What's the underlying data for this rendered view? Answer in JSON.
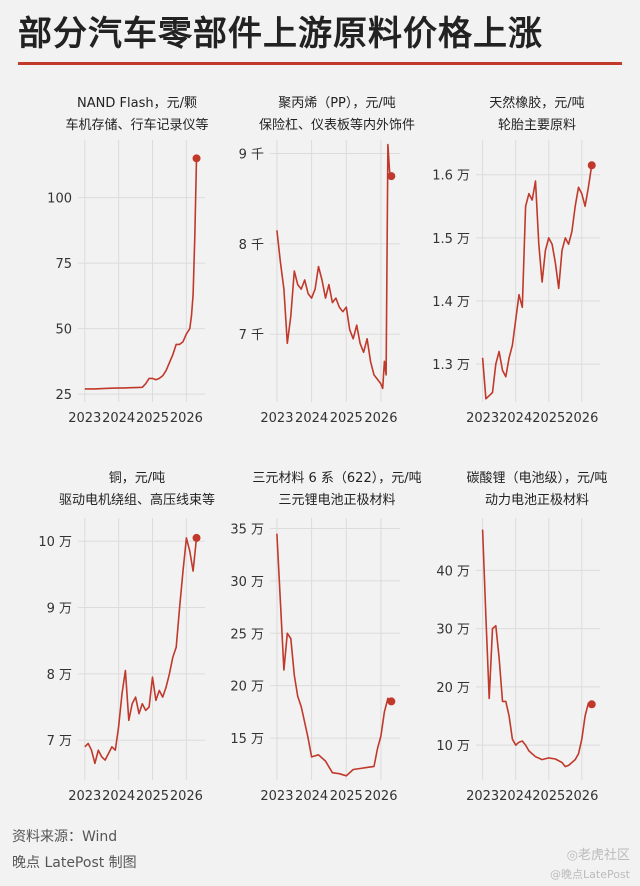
{
  "title": "部分汽车零部件上游原料价格上涨",
  "footer": {
    "source": "资料来源：Wind",
    "credit": "晚点 LatePost 制图",
    "watermark": "◎老虎社区",
    "watermark_sub": "@晚点LatePost"
  },
  "colors": {
    "accent": "#c0392b",
    "grid": "#dcdcdc",
    "background": "#f2f2f2"
  },
  "chart_data": [
    {
      "type": "line",
      "title": "NAND Flash，元/颗",
      "subtitle": "车机存储、行车记录仪等",
      "x_ticks": [
        "2023",
        "2024",
        "2025",
        "2026"
      ],
      "y_ticks": [
        {
          "v": 25,
          "label": "25"
        },
        {
          "v": 50,
          "label": "50"
        },
        {
          "v": 75,
          "label": "75"
        },
        {
          "v": 100,
          "label": "100"
        }
      ],
      "xlim": [
        2022.8,
        2026.55
      ],
      "ylim": [
        22,
        122
      ],
      "x": [
        2023.0,
        2023.3,
        2023.6,
        2023.9,
        2024.2,
        2024.5,
        2024.7,
        2024.8,
        2024.9,
        2025.0,
        2025.1,
        2025.2,
        2025.3,
        2025.4,
        2025.5,
        2025.6,
        2025.7,
        2025.8,
        2025.9,
        2026.0,
        2026.05,
        2026.1,
        2026.15,
        2026.2,
        2026.25,
        2026.3
      ],
      "y": [
        27,
        27,
        27.2,
        27.3,
        27.4,
        27.5,
        27.6,
        29,
        31,
        31,
        30.5,
        31,
        32,
        34,
        37,
        40,
        44,
        44,
        45,
        48,
        49,
        50,
        55,
        63,
        85,
        115
      ]
    },
    {
      "type": "line",
      "title": "聚丙烯（PP），元/吨",
      "subtitle": "保险杠、仪表板等内外饰件",
      "x_ticks": [
        "2023",
        "2024",
        "2025",
        "2026"
      ],
      "y_ticks": [
        {
          "v": 7000,
          "label": "7 千"
        },
        {
          "v": 8000,
          "label": "8 千"
        },
        {
          "v": 9000,
          "label": "9 千"
        }
      ],
      "xlim": [
        2022.8,
        2026.55
      ],
      "ylim": [
        6250,
        9150
      ],
      "x": [
        2023.0,
        2023.1,
        2023.2,
        2023.3,
        2023.4,
        2023.5,
        2023.6,
        2023.7,
        2023.8,
        2023.9,
        2024.0,
        2024.1,
        2024.2,
        2024.3,
        2024.4,
        2024.5,
        2024.6,
        2024.7,
        2024.8,
        2024.9,
        2025.0,
        2025.1,
        2025.2,
        2025.3,
        2025.4,
        2025.5,
        2025.6,
        2025.7,
        2025.8,
        2025.9,
        2026.0,
        2026.05,
        2026.1,
        2026.15,
        2026.2,
        2026.25,
        2026.3
      ],
      "y": [
        8150,
        7800,
        7500,
        6900,
        7200,
        7700,
        7550,
        7500,
        7600,
        7450,
        7400,
        7500,
        7750,
        7600,
        7400,
        7550,
        7350,
        7400,
        7300,
        7250,
        7300,
        7050,
        6950,
        7100,
        6900,
        6800,
        6950,
        6700,
        6550,
        6500,
        6450,
        6400,
        6700,
        6550,
        9100,
        8800,
        8750
      ]
    },
    {
      "type": "line",
      "title": "天然橡胶，元/吨",
      "subtitle": "轮胎主要原料",
      "x_ticks": [
        "2023",
        "2024",
        "2025",
        "2026"
      ],
      "y_ticks": [
        {
          "v": 13000,
          "label": "1.3 万"
        },
        {
          "v": 14000,
          "label": "1.4 万"
        },
        {
          "v": 15000,
          "label": "1.5 万"
        },
        {
          "v": 16000,
          "label": "1.6 万"
        }
      ],
      "xlim": [
        2022.8,
        2026.55
      ],
      "ylim": [
        12400,
        16550
      ],
      "x": [
        2023.0,
        2023.1,
        2023.2,
        2023.3,
        2023.4,
        2023.5,
        2023.6,
        2023.7,
        2023.8,
        2023.9,
        2024.0,
        2024.1,
        2024.2,
        2024.3,
        2024.4,
        2024.5,
        2024.6,
        2024.7,
        2024.8,
        2024.9,
        2025.0,
        2025.1,
        2025.2,
        2025.3,
        2025.4,
        2025.5,
        2025.6,
        2025.7,
        2025.8,
        2025.9,
        2026.0,
        2026.1,
        2026.2,
        2026.3
      ],
      "y": [
        13100,
        12450,
        12500,
        12550,
        13000,
        13200,
        12900,
        12800,
        13100,
        13300,
        13700,
        14100,
        13900,
        15500,
        15700,
        15600,
        15900,
        14900,
        14300,
        14800,
        15000,
        14900,
        14600,
        14200,
        14800,
        15000,
        14900,
        15100,
        15500,
        15800,
        15700,
        15500,
        15800,
        16150
      ]
    },
    {
      "type": "line",
      "title": "铜，元/吨",
      "subtitle": "驱动电机绕组、高压线束等",
      "x_ticks": [
        "2023",
        "2024",
        "2025",
        "2026"
      ],
      "y_ticks": [
        {
          "v": 70000,
          "label": "7 万"
        },
        {
          "v": 80000,
          "label": "8 万"
        },
        {
          "v": 90000,
          "label": "9 万"
        },
        {
          "v": 100000,
          "label": "10 万"
        }
      ],
      "xlim": [
        2022.8,
        2026.55
      ],
      "ylim": [
        64000,
        103500
      ],
      "x": [
        2023.0,
        2023.1,
        2023.2,
        2023.3,
        2023.4,
        2023.5,
        2023.6,
        2023.7,
        2023.8,
        2023.9,
        2024.0,
        2024.1,
        2024.2,
        2024.3,
        2024.4,
        2024.5,
        2024.6,
        2024.7,
        2024.8,
        2024.9,
        2025.0,
        2025.1,
        2025.2,
        2025.3,
        2025.4,
        2025.5,
        2025.6,
        2025.7,
        2025.8,
        2025.9,
        2026.0,
        2026.1,
        2026.2,
        2026.3
      ],
      "y": [
        69000,
        69500,
        68500,
        66500,
        68500,
        67500,
        67000,
        68000,
        69000,
        68500,
        72000,
        77000,
        80500,
        73000,
        75500,
        76500,
        74000,
        75500,
        74500,
        75000,
        79500,
        76000,
        77500,
        76500,
        78000,
        80000,
        82500,
        84000,
        90000,
        95500,
        100500,
        98500,
        95500,
        100500
      ]
    },
    {
      "type": "line",
      "title": "三元材料 6 系（622），元/吨",
      "subtitle": "三元锂电池正极材料",
      "x_ticks": [
        "2023",
        "2024",
        "2025",
        "2026"
      ],
      "y_ticks": [
        {
          "v": 150000,
          "label": "15 万"
        },
        {
          "v": 200000,
          "label": "20 万"
        },
        {
          "v": 250000,
          "label": "25 万"
        },
        {
          "v": 300000,
          "label": "30 万"
        },
        {
          "v": 350000,
          "label": "35 万"
        }
      ],
      "xlim": [
        2022.8,
        2026.55
      ],
      "ylim": [
        110000,
        360000
      ],
      "x": [
        2023.0,
        2023.1,
        2023.2,
        2023.3,
        2023.4,
        2023.5,
        2023.6,
        2023.7,
        2023.8,
        2023.9,
        2024.0,
        2024.2,
        2024.4,
        2024.6,
        2024.8,
        2025.0,
        2025.2,
        2025.4,
        2025.6,
        2025.8,
        2025.9,
        2026.0,
        2026.1,
        2026.2,
        2026.3
      ],
      "y": [
        345000,
        280000,
        215000,
        250000,
        245000,
        210000,
        190000,
        180000,
        165000,
        150000,
        132000,
        134000,
        128000,
        117000,
        116000,
        114000,
        120000,
        121000,
        122000,
        123000,
        140000,
        152000,
        175000,
        188000,
        185000
      ]
    },
    {
      "type": "line",
      "title": "碳酸锂（电池级），元/吨",
      "subtitle": "动力电池正极材料",
      "x_ticks": [
        "2023",
        "2024",
        "2025",
        "2026"
      ],
      "y_ticks": [
        {
          "v": 100000,
          "label": "10 万"
        },
        {
          "v": 200000,
          "label": "20 万"
        },
        {
          "v": 300000,
          "label": "30 万"
        },
        {
          "v": 400000,
          "label": "40 万"
        }
      ],
      "xlim": [
        2022.8,
        2026.55
      ],
      "ylim": [
        40000,
        490000
      ],
      "x": [
        2023.0,
        2023.1,
        2023.2,
        2023.3,
        2023.4,
        2023.5,
        2023.6,
        2023.7,
        2023.8,
        2023.9,
        2024.0,
        2024.1,
        2024.2,
        2024.3,
        2024.4,
        2024.6,
        2024.8,
        2025.0,
        2025.2,
        2025.4,
        2025.5,
        2025.6,
        2025.8,
        2025.9,
        2026.0,
        2026.1,
        2026.2,
        2026.3
      ],
      "y": [
        470000,
        320000,
        180000,
        300000,
        305000,
        250000,
        175000,
        175000,
        150000,
        110000,
        100000,
        105000,
        107000,
        100000,
        90000,
        80000,
        75000,
        78000,
        76000,
        70000,
        63000,
        65000,
        75000,
        85000,
        110000,
        150000,
        172000,
        170000
      ]
    }
  ]
}
